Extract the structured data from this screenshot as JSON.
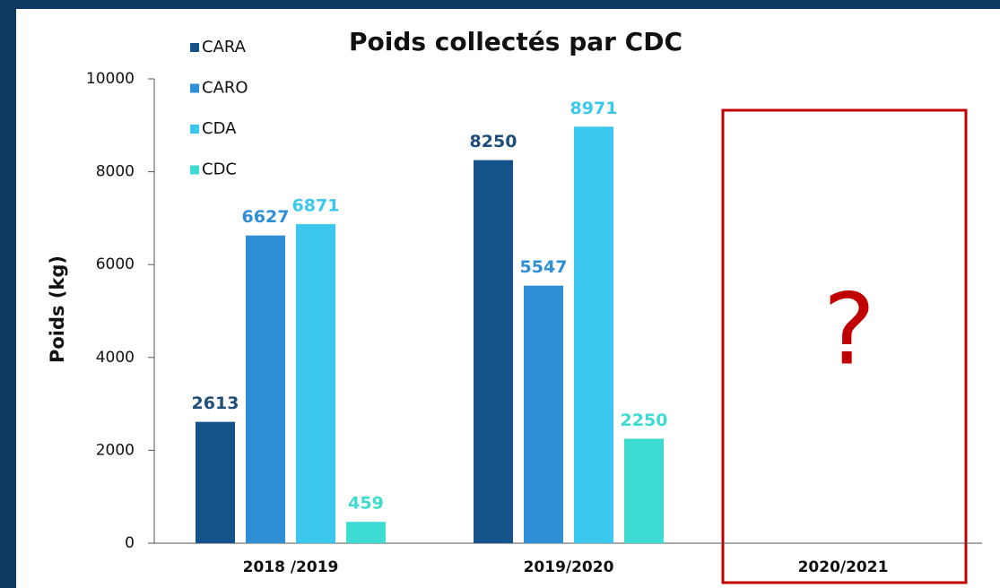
{
  "chart_data": {
    "type": "bar",
    "title": "Poids collectés par CDC",
    "y_label": "Poids (kg)",
    "categories": [
      "2018 /2019",
      "2019/2020",
      "2020/2021"
    ],
    "series": [
      {
        "name": "CARA",
        "color": "#15528a",
        "values": [
          2613,
          8250,
          null
        ]
      },
      {
        "name": "CARO",
        "color": "#2e8fd6",
        "values": [
          6627,
          5547,
          null
        ]
      },
      {
        "name": "CDA",
        "color": "#3cc8ee",
        "values": [
          6871,
          8971,
          null
        ]
      },
      {
        "name": "CDC",
        "color": "#3ddbd2",
        "values": [
          459,
          2250,
          null
        ]
      }
    ],
    "ylim": [
      0,
      10000
    ],
    "yticks": [
      0,
      2000,
      4000,
      6000,
      8000,
      10000
    ],
    "legend": "top-left",
    "annotation": "?"
  }
}
